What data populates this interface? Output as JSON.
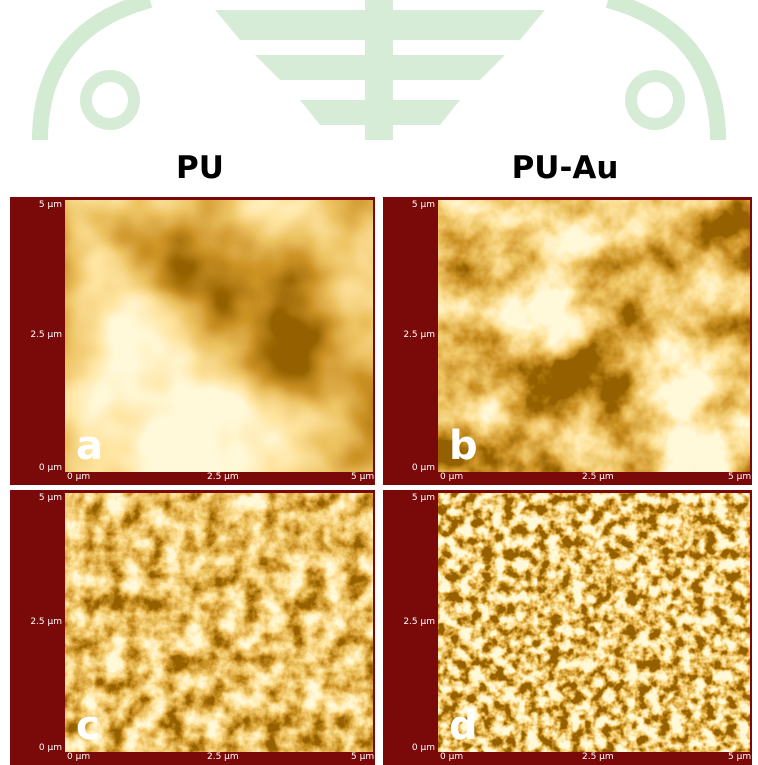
{
  "columns": [
    "PU",
    "PU-Au"
  ],
  "panels": [
    {
      "letter": "a",
      "y_ticks": [
        "5 µm",
        "2.5 µm",
        "0 µm"
      ],
      "x_ticks": [
        "0 µm",
        "2.5 µm",
        "5 µm"
      ]
    },
    {
      "letter": "b",
      "y_ticks": [
        "5 µm",
        "2.5 µm",
        "0 µm"
      ],
      "x_ticks": [
        "0 µm",
        "2.5 µm",
        "5 µm"
      ]
    },
    {
      "letter": "c",
      "y_ticks": [
        "5 µm",
        "2.5 µm",
        "0 µm"
      ],
      "x_ticks": [
        "0 µm",
        "2.5 µm",
        "5 µm"
      ]
    },
    {
      "letter": "d",
      "y_ticks": [
        "5 µm",
        "2.5 µm",
        "0 µm"
      ],
      "x_ticks": [
        "0 µm",
        "2.5 µm",
        "5 µm"
      ]
    }
  ]
}
